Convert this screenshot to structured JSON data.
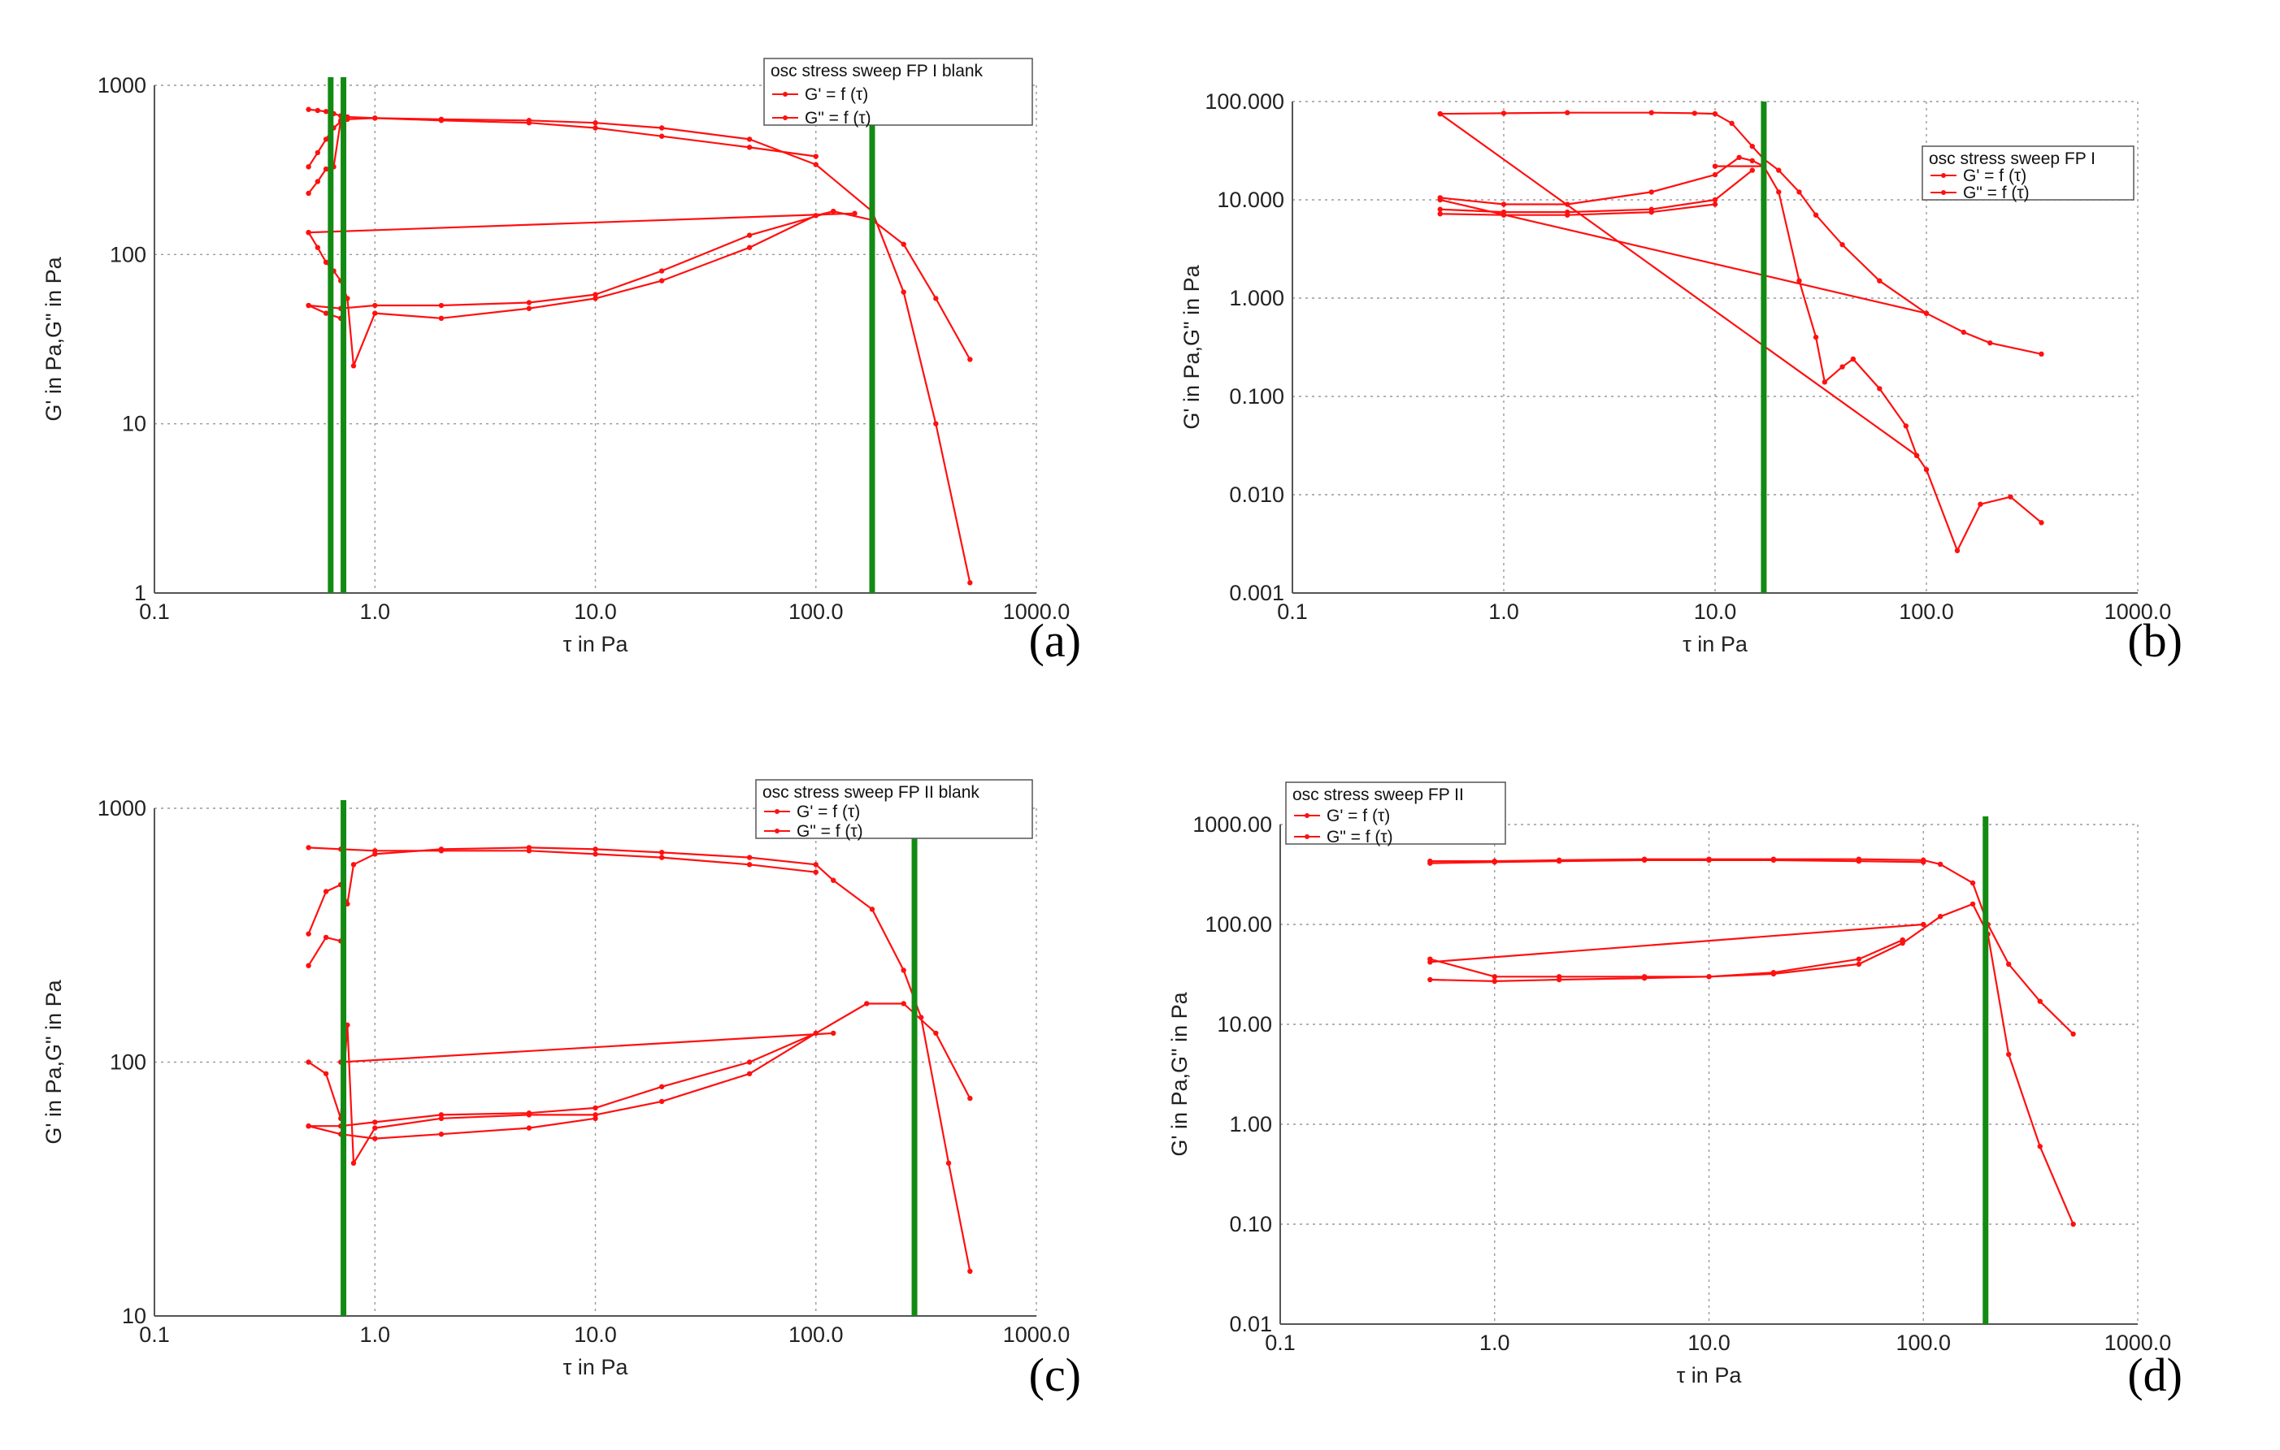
{
  "chart_data": [
    {
      "type": "line",
      "panel_label": "(a)",
      "xscale": "log",
      "yscale": "log",
      "xlim": [
        0.1,
        1000
      ],
      "ylim": [
        1,
        1000
      ],
      "xlabel": "τ in Pa",
      "ylabel": "G' in Pa,G\" in Pa",
      "xticks": [
        "0.1",
        "1.0",
        "10.0",
        "100.0",
        "1000.0"
      ],
      "yticks": [
        {
          "v": 1,
          "t": "1"
        },
        {
          "v": 10,
          "t": "10"
        },
        {
          "v": 100,
          "t": "100"
        },
        {
          "v": 1000,
          "t": "1000"
        }
      ],
      "legend": {
        "title": "osc stress sweep FP I blank",
        "entries": [
          "G' = f (τ)",
          "G\" = f (τ)"
        ]
      },
      "series": [
        {
          "name": "G' up",
          "x": [
            0.5,
            0.55,
            0.6,
            0.65,
            0.7,
            0.75,
            1.0,
            2.0,
            5.0,
            10.0,
            20.0,
            50.0,
            100.0,
            180.0,
            250.0,
            350.0,
            500.0
          ],
          "y": [
            330,
            400,
            480,
            560,
            610,
            630,
            640,
            630,
            620,
            600,
            560,
            480,
            340,
            180,
            60,
            10,
            1.15
          ]
        },
        {
          "name": "G' down",
          "x": [
            100.0,
            50.0,
            20.0,
            10.0,
            5.0,
            2.0,
            1.0,
            0.75,
            0.7,
            0.65,
            0.6,
            0.55,
            0.5
          ],
          "y": [
            380,
            430,
            500,
            560,
            600,
            620,
            640,
            650,
            660,
            680,
            700,
            710,
            720
          ]
        },
        {
          "name": "G' start",
          "x": [
            0.5,
            0.55,
            0.6,
            0.65,
            0.7
          ],
          "y": [
            230,
            270,
            320,
            330,
            620
          ]
        },
        {
          "name": "G'' up",
          "x": [
            0.5,
            0.55,
            0.6,
            0.65,
            0.7,
            0.75,
            0.8,
            1.0,
            2.0,
            5.0,
            10.0,
            20.0,
            50.0,
            100.0,
            120.0,
            180.0,
            250.0,
            350.0,
            500.0
          ],
          "y": [
            135,
            110,
            90,
            80,
            70,
            55,
            22,
            45,
            42,
            48,
            55,
            70,
            110,
            170,
            180,
            160,
            115,
            55,
            24
          ]
        },
        {
          "name": "G'' down",
          "x": [
            120.0,
            50.0,
            20.0,
            10.0,
            5.0,
            2.0,
            1.0,
            0.7,
            0.5
          ],
          "y": [
            180,
            130,
            80,
            58,
            52,
            50,
            50,
            48,
            50
          ]
        },
        {
          "name": "G'' start",
          "x": [
            0.5,
            0.6,
            0.7
          ],
          "y": [
            50,
            45,
            42
          ]
        },
        {
          "name": "G'' return",
          "x": [
            0.5,
            150.0
          ],
          "y": [
            135,
            175
          ]
        }
      ],
      "crossover_lines": [
        0.63,
        0.72,
        180
      ]
    },
    {
      "type": "line",
      "panel_label": "(b)",
      "xscale": "log",
      "yscale": "log",
      "xlim": [
        0.1,
        1000
      ],
      "ylim": [
        0.001,
        100
      ],
      "xlabel": "τ in Pa",
      "ylabel": "G' in Pa,G\" in Pa",
      "xticks": [
        "0.1",
        "1.0",
        "10.0",
        "100.0",
        "1000.0"
      ],
      "yticks": [
        {
          "v": 0.001,
          "t": "0.001"
        },
        {
          "v": 0.01,
          "t": "0.010"
        },
        {
          "v": 0.1,
          "t": "0.100"
        },
        {
          "v": 1,
          "t": "1.000"
        },
        {
          "v": 10,
          "t": "10.000"
        },
        {
          "v": 100,
          "t": "100.000"
        }
      ],
      "legend": {
        "title": "osc stress sweep FP I",
        "entries": [
          "G' = f (τ)",
          "G\" = f (τ)"
        ]
      },
      "series": [
        {
          "name": "G' plateau",
          "x": [
            0.5,
            1.0,
            2.0,
            5.0,
            8.0,
            10.0,
            12.0,
            15.0,
            17.0,
            20.0,
            25.0,
            30.0,
            40.0,
            60.0,
            100.0,
            150.0,
            200.0,
            350.0
          ],
          "y": [
            75,
            76,
            77,
            77,
            76,
            75,
            60,
            35,
            26,
            20,
            12,
            7,
            3.5,
            1.5,
            0.7,
            0.45,
            0.35,
            0.27
          ]
        },
        {
          "name": "G' lower",
          "x": [
            0.5,
            1.0,
            2.0,
            5.0,
            10.0,
            15.0
          ],
          "y": [
            8,
            7.5,
            7.5,
            8,
            10,
            20
          ]
        },
        {
          "name": "G' diag",
          "x": [
            0.5,
            100.0
          ],
          "y": [
            10,
            0.7
          ]
        },
        {
          "name": "G'' rise",
          "x": [
            0.5,
            1.0,
            2.0,
            5.0,
            10.0,
            13.0,
            15.0,
            17.0
          ],
          "y": [
            10.5,
            9,
            9,
            12,
            18,
            27,
            25,
            22
          ]
        },
        {
          "name": "G'' drop",
          "x": [
            17.0,
            20.0,
            25.0,
            30.0,
            33.0,
            40.0,
            45.0,
            60.0,
            80.0,
            90.0,
            100.0,
            140.0,
            180.0,
            250.0,
            350.0
          ],
          "y": [
            22,
            12,
            1.5,
            0.4,
            0.14,
            0.2,
            0.24,
            0.12,
            0.05,
            0.025,
            0.018,
            0.0027,
            0.008,
            0.0095,
            0.0052
          ]
        },
        {
          "name": "G'' lower",
          "x": [
            0.5,
            1.0,
            2.0,
            5.0,
            10.0
          ],
          "y": [
            7.2,
            7.0,
            7.0,
            7.5,
            9.0
          ]
        },
        {
          "name": "G'' diag",
          "x": [
            0.5,
            90.0
          ],
          "y": [
            75,
            0.025
          ]
        },
        {
          "name": "G'' flat",
          "x": [
            10.0,
            17.0
          ],
          "y": [
            22,
            22
          ]
        }
      ],
      "crossover_lines": [
        17
      ]
    },
    {
      "type": "line",
      "panel_label": "(c)",
      "xscale": "log",
      "yscale": "log",
      "xlim": [
        0.1,
        1000
      ],
      "ylim": [
        10,
        1000
      ],
      "xlabel": "τ in Pa",
      "ylabel": "G' in Pa,G\" in Pa",
      "xticks": [
        "0.1",
        "1.0",
        "10.0",
        "100.0",
        "1000.0"
      ],
      "yticks": [
        {
          "v": 10,
          "t": "10"
        },
        {
          "v": 100,
          "t": "100"
        },
        {
          "v": 1000,
          "t": "1000"
        }
      ],
      "legend": {
        "title": "osc stress sweep FP II blank",
        "entries": [
          "G' = f (τ)",
          "G\" = f (τ)"
        ]
      },
      "series": [
        {
          "name": "G' up",
          "x": [
            0.5,
            0.6,
            0.7,
            0.75,
            0.8,
            1.0,
            2.0,
            5.0,
            10.0,
            20.0,
            50.0,
            100.0,
            120.0,
            180.0,
            250.0,
            300.0,
            400.0,
            500.0
          ],
          "y": [
            320,
            470,
            500,
            420,
            600,
            660,
            690,
            700,
            690,
            670,
            640,
            600,
            520,
            400,
            230,
            150,
            40,
            15
          ]
        },
        {
          "name": "G' down",
          "x": [
            100.0,
            50.0,
            20.0,
            10.0,
            5.0,
            2.0,
            1.0,
            0.7,
            0.5
          ],
          "y": [
            560,
            600,
            640,
            660,
            680,
            680,
            680,
            690,
            700
          ]
        },
        {
          "name": "G' start",
          "x": [
            0.5,
            0.6,
            0.7
          ],
          "y": [
            240,
            310,
            300
          ]
        },
        {
          "name": "G'' up",
          "x": [
            0.5,
            0.6,
            0.7,
            0.75,
            0.8,
            1.0,
            2.0,
            5.0,
            10.0,
            20.0,
            50.0,
            100.0,
            170.0,
            250.0,
            350.0,
            500.0
          ],
          "y": [
            100,
            90,
            60,
            140,
            40,
            55,
            60,
            62,
            62,
            70,
            90,
            130,
            170,
            170,
            130,
            72
          ]
        },
        {
          "name": "G'' down",
          "x": [
            100.0,
            50.0,
            20.0,
            10.0,
            5.0,
            2.0,
            1.0,
            0.7,
            0.5
          ],
          "y": [
            130,
            100,
            80,
            66,
            63,
            62,
            58,
            56,
            56
          ]
        },
        {
          "name": "G'' low",
          "x": [
            0.5,
            0.7,
            1.0,
            2.0,
            5.0,
            10.0
          ],
          "y": [
            56,
            52,
            50,
            52,
            55,
            60
          ]
        },
        {
          "name": "G'' return",
          "x": [
            0.7,
            120.0
          ],
          "y": [
            100,
            130
          ]
        }
      ],
      "crossover_lines": [
        0.72,
        280
      ]
    },
    {
      "type": "line",
      "panel_label": "(d)",
      "xscale": "log",
      "yscale": "log",
      "xlim": [
        0.1,
        1000
      ],
      "ylim": [
        0.01,
        1000
      ],
      "xlabel": "τ in Pa",
      "ylabel": "G' in Pa,G\" in Pa",
      "xticks": [
        "0.1",
        "1.0",
        "10.0",
        "100.0",
        "1000.0"
      ],
      "yticks": [
        {
          "v": 0.01,
          "t": "0.01"
        },
        {
          "v": 0.1,
          "t": "0.10"
        },
        {
          "v": 1,
          "t": "1.00"
        },
        {
          "v": 10,
          "t": "10.00"
        },
        {
          "v": 100,
          "t": "100.00"
        },
        {
          "v": 1000,
          "t": "1000.00"
        }
      ],
      "legend": {
        "title": "osc stress sweep FP II",
        "entries": [
          "G' = f (τ)",
          "G\" = f (τ)"
        ]
      },
      "series": [
        {
          "name": "G' up",
          "x": [
            0.5,
            1.0,
            2.0,
            5.0,
            10.0,
            20.0,
            50.0,
            100.0,
            120.0,
            170.0,
            200.0,
            250.0,
            350.0,
            500.0
          ],
          "y": [
            430,
            430,
            440,
            450,
            450,
            450,
            450,
            440,
            400,
            260,
            100,
            40,
            17,
            8
          ]
        },
        {
          "name": "G' down",
          "x": [
            100.0,
            50.0,
            20.0,
            10.0,
            5.0,
            2.0,
            1.0,
            0.5
          ],
          "y": [
            420,
            430,
            440,
            440,
            440,
            430,
            420,
            410
          ]
        },
        {
          "name": "G'' up",
          "x": [
            0.5,
            1.0,
            2.0,
            5.0,
            10.0,
            20.0,
            50.0,
            80.0,
            120.0,
            170.0,
            200.0,
            250.0,
            350.0,
            500.0
          ],
          "y": [
            45,
            30,
            30,
            30,
            30,
            32,
            40,
            65,
            120,
            160,
            80,
            5,
            0.6,
            0.1
          ]
        },
        {
          "name": "G'' down",
          "x": [
            80.0,
            50.0,
            20.0,
            10.0,
            5.0,
            2.0,
            1.0,
            0.5
          ],
          "y": [
            70,
            45,
            33,
            30,
            29,
            28,
            27,
            28
          ]
        },
        {
          "name": "G'' return",
          "x": [
            0.5,
            100.0
          ],
          "y": [
            42,
            100
          ]
        }
      ],
      "crossover_lines": [
        195
      ]
    }
  ],
  "colors": {
    "series": "#ff1010",
    "crossover": "#138a13",
    "grid": "#9a9a9a"
  }
}
